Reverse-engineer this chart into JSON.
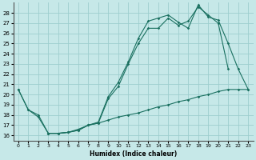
{
  "xlabel": "Humidex (Indice chaleur)",
  "bg_color": "#c6e8e8",
  "grid_color": "#9ecece",
  "line_color": "#1a7060",
  "xlim": [
    -0.5,
    23.5
  ],
  "ylim": [
    15.5,
    29.0
  ],
  "xticks": [
    0,
    1,
    2,
    3,
    4,
    5,
    6,
    7,
    8,
    9,
    10,
    11,
    12,
    13,
    14,
    15,
    16,
    17,
    18,
    19,
    20,
    21,
    22,
    23
  ],
  "yticks": [
    16,
    17,
    18,
    19,
    20,
    21,
    22,
    23,
    24,
    25,
    26,
    27,
    28
  ],
  "line1_x": [
    0,
    1,
    2,
    3,
    4,
    5,
    6,
    7,
    8,
    9,
    10,
    11,
    12,
    13,
    14,
    15,
    16,
    17,
    18,
    19,
    20,
    21
  ],
  "line1_y": [
    20.5,
    18.5,
    18.0,
    16.2,
    16.2,
    16.3,
    16.5,
    17.0,
    17.2,
    19.6,
    20.8,
    23.0,
    25.0,
    26.5,
    26.5,
    27.5,
    26.8,
    27.2,
    28.6,
    27.8,
    27.0,
    22.5
  ],
  "line2_x": [
    0,
    1,
    2,
    3,
    4,
    5,
    6,
    7,
    8,
    9,
    10,
    11,
    12,
    13,
    14,
    15,
    16,
    17,
    18,
    19,
    20,
    21,
    22,
    23
  ],
  "line2_y": [
    20.5,
    18.5,
    17.8,
    16.2,
    16.2,
    16.3,
    16.6,
    17.0,
    17.3,
    19.8,
    21.2,
    23.2,
    25.5,
    27.2,
    27.5,
    27.8,
    27.1,
    26.5,
    28.8,
    27.6,
    27.3,
    25.0,
    22.5,
    20.5
  ],
  "line3_x": [
    3,
    4,
    5,
    6,
    7,
    8,
    9,
    10,
    11,
    12,
    13,
    14,
    15,
    16,
    17,
    18,
    19,
    20,
    21,
    22,
    23
  ],
  "line3_y": [
    16.2,
    16.2,
    16.3,
    16.5,
    17.0,
    17.2,
    17.5,
    17.8,
    18.0,
    18.2,
    18.5,
    18.8,
    19.0,
    19.3,
    19.5,
    19.8,
    20.0,
    20.3,
    20.5,
    20.5,
    20.5
  ]
}
